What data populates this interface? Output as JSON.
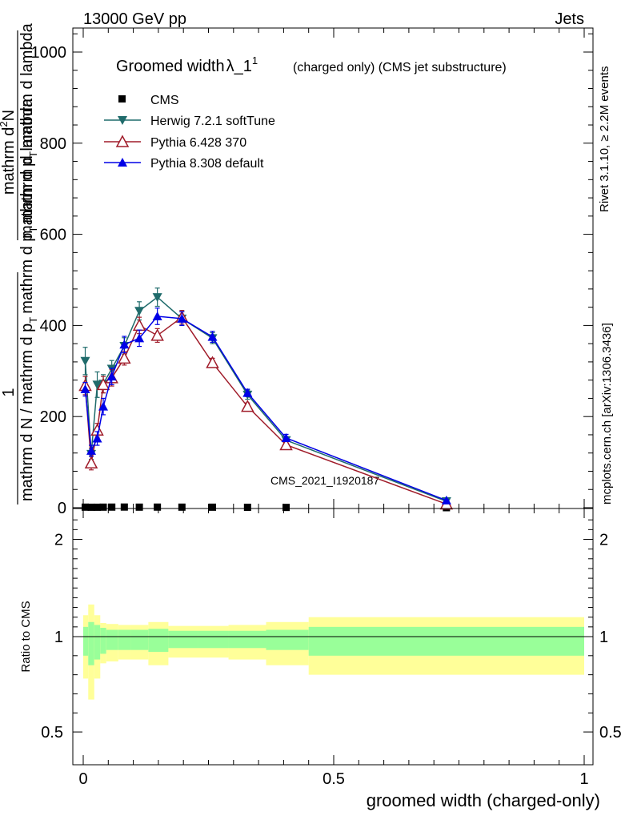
{
  "header": {
    "left": "13000 GeV pp",
    "right": "Jets"
  },
  "side_labels": {
    "rivet": "Rivet 3.1.10, ≥ 2.2M events",
    "mcplots": "mcplots.cern.ch [arXiv:1306.3436]"
  },
  "watermark": "CMS_2021_I1920187",
  "title": {
    "main": "Groomed width",
    "lambda": "λ_1",
    "sup": "1",
    "suffix": "(charged only) (CMS jet substructure)"
  },
  "ylabel_top": {
    "num_one": "1",
    "den": "mathrm d N / mathrm d p",
    "den_sub": "T",
    "mid": "mathrm d p",
    "mid_sub": "T",
    "rest": "mathrm d lambda",
    "num": "mathrm d",
    "num_sup": "2",
    "num_tail": "N",
    "den2": "mathrm d p",
    "den2_sub": "T",
    "den2_tail": "mathrm d lambda"
  },
  "ylabel_bottom": "Ratio to CMS",
  "xlabel": "groomed width (charged-only)",
  "colors": {
    "cms": "#000000",
    "herwig": "#1f6b6b",
    "pythia6": "#a01c2a",
    "pythia8": "#0000e6",
    "band_inner": "#99ff99",
    "band_outer": "#ffff99"
  },
  "chart_data": [
    {
      "type": "line",
      "panel": "main",
      "xlim": [
        0,
        1
      ],
      "ylim": [
        0,
        1050
      ],
      "yticks": [
        0,
        200,
        400,
        600,
        800,
        1000
      ],
      "ytick_labels": [
        "0",
        "200",
        "400",
        "600",
        "800",
        "1000"
      ],
      "series": [
        {
          "name": "CMS",
          "marker": "square",
          "x": [
            0.004,
            0.016,
            0.028,
            0.04,
            0.057,
            0.082,
            0.112,
            0.148,
            0.197,
            0.258,
            0.328,
            0.405,
            0.725
          ],
          "y": [
            1.2,
            1.0,
            1.0,
            1.2,
            1.3,
            1.4,
            1.2,
            1.3,
            1.2,
            1.1,
            0.9,
            0.6,
            0.03
          ]
        },
        {
          "name": "Herwig 7.2.1 softTune",
          "marker": "triangle-down",
          "x": [
            0.004,
            0.016,
            0.028,
            0.04,
            0.057,
            0.082,
            0.112,
            0.148,
            0.197,
            0.258,
            0.328,
            0.405,
            0.725
          ],
          "y": [
            322,
            118,
            270,
            272,
            305,
            355,
            432,
            462,
            415,
            372,
            248,
            148,
            14
          ],
          "err": [
            30,
            12,
            28,
            20,
            18,
            18,
            20,
            20,
            15,
            12,
            10,
            8,
            2
          ]
        },
        {
          "name": "Pythia 6.428 370",
          "marker": "triangle-up-open",
          "x": [
            0.004,
            0.016,
            0.028,
            0.04,
            0.057,
            0.082,
            0.112,
            0.148,
            0.197,
            0.258,
            0.328,
            0.405,
            0.725
          ],
          "y": [
            268,
            98,
            170,
            270,
            285,
            328,
            400,
            378,
            418,
            318,
            222,
            138,
            8
          ],
          "err": [
            20,
            15,
            15,
            18,
            18,
            15,
            18,
            15,
            15,
            10,
            8,
            7,
            2
          ]
        },
        {
          "name": "Pythia 8.308 default",
          "marker": "triangle-up",
          "x": [
            0.004,
            0.016,
            0.028,
            0.04,
            0.057,
            0.082,
            0.112,
            0.148,
            0.197,
            0.258,
            0.328,
            0.405,
            0.725
          ],
          "y": [
            260,
            125,
            152,
            222,
            288,
            358,
            372,
            420,
            415,
            375,
            252,
            153,
            16
          ],
          "err": [
            15,
            12,
            15,
            18,
            18,
            18,
            18,
            18,
            15,
            12,
            8,
            8,
            2
          ]
        }
      ]
    },
    {
      "type": "area",
      "panel": "ratio",
      "xlim": [
        0,
        1
      ],
      "ylim": [
        0.4,
        2.25
      ],
      "yticks": [
        0.5,
        1,
        2
      ],
      "ytick_labels": [
        "0.5",
        "1",
        "2"
      ],
      "xticks": [
        0,
        0.5,
        1
      ],
      "xtick_labels": [
        "0",
        "0.5",
        "1"
      ],
      "bin_edges": [
        0,
        0.01,
        0.022,
        0.034,
        0.046,
        0.07,
        0.095,
        0.13,
        0.17,
        0.23,
        0.29,
        0.365,
        0.45,
        1.0
      ],
      "band_inner_lo": [
        0.9,
        0.85,
        0.88,
        0.91,
        0.93,
        0.93,
        0.93,
        0.92,
        0.94,
        0.94,
        0.94,
        0.93,
        0.9
      ],
      "band_inner_hi": [
        1.1,
        1.15,
        1.12,
        1.09,
        1.07,
        1.07,
        1.07,
        1.08,
        1.06,
        1.06,
        1.06,
        1.07,
        1.1
      ],
      "band_outer_lo": [
        0.78,
        0.67,
        0.78,
        0.86,
        0.87,
        0.88,
        0.88,
        0.85,
        0.89,
        0.89,
        0.88,
        0.85,
        0.8
      ],
      "band_outer_hi": [
        1.22,
        1.33,
        1.22,
        1.14,
        1.13,
        1.12,
        1.12,
        1.15,
        1.11,
        1.11,
        1.12,
        1.15,
        1.2
      ]
    }
  ]
}
